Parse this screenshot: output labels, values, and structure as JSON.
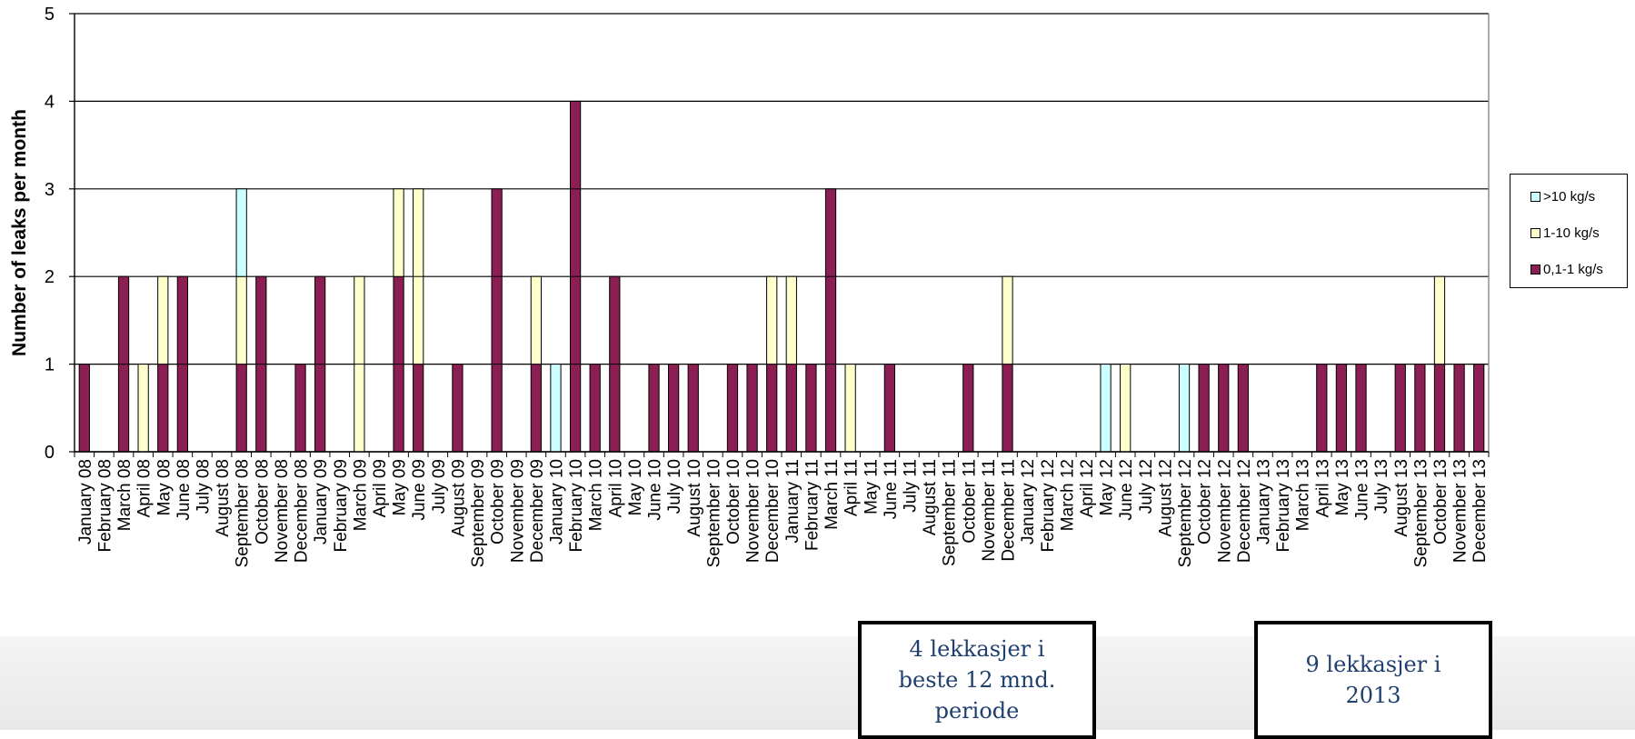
{
  "chart_data": {
    "type": "bar",
    "stacked": true,
    "ylabel": "Number of leaks per month",
    "xlabel": "",
    "title": "",
    "ylim": [
      0,
      5
    ],
    "yticks": [
      0,
      1,
      2,
      3,
      4,
      5
    ],
    "grid": true,
    "legend_position": "right",
    "categories": [
      "January 08",
      "February 08",
      "March 08",
      "April 08",
      "May 08",
      "June 08",
      "July 08",
      "August 08",
      "September 08",
      "October 08",
      "November 08",
      "December 08",
      "January 09",
      "February 09",
      "March 09",
      "April 09",
      "May 09",
      "June 09",
      "July 09",
      "August 09",
      "September 09",
      "October 09",
      "November 09",
      "December 09",
      "January 10",
      "February 10",
      "March 10",
      "April 10",
      "May 10",
      "June 10",
      "July 10",
      "August 10",
      "September 10",
      "October 10",
      "November 10",
      "December 10",
      "January 11",
      "February 11",
      "March 11",
      "April 11",
      "May 11",
      "June 11",
      "July 11",
      "August 11",
      "September 11",
      "October 11",
      "November 11",
      "December 11",
      "January 12",
      "February 12",
      "March 12",
      "April 12",
      "May 12",
      "June 12",
      "July 12",
      "August 12",
      "September 12",
      "October 12",
      "November 12",
      "December 12",
      "January 13",
      "February 13",
      "March 13",
      "April 13",
      "May 13",
      "June 13",
      "July 13",
      "August 13",
      "September 13",
      "October 13",
      "November 13",
      "December 13"
    ],
    "series": [
      {
        "name": "0,1-1 kg/s",
        "color": "#8b1e52",
        "values": [
          1,
          0,
          2,
          0,
          1,
          2,
          0,
          0,
          1,
          2,
          0,
          1,
          2,
          0,
          0,
          0,
          2,
          1,
          0,
          1,
          0,
          3,
          0,
          1,
          0,
          4,
          1,
          2,
          0,
          1,
          1,
          1,
          0,
          1,
          1,
          1,
          1,
          1,
          3,
          0,
          0,
          1,
          0,
          0,
          0,
          1,
          0,
          1,
          0,
          0,
          0,
          0,
          0,
          0,
          0,
          0,
          0,
          1,
          1,
          1,
          0,
          0,
          0,
          1,
          1,
          1,
          0,
          1,
          1,
          1,
          1,
          1
        ]
      },
      {
        "name": "1-10 kg/s",
        "color": "#ffffcc",
        "values": [
          0,
          0,
          0,
          1,
          1,
          0,
          0,
          0,
          1,
          0,
          0,
          0,
          0,
          0,
          2,
          0,
          1,
          2,
          0,
          0,
          0,
          0,
          0,
          1,
          0,
          0,
          0,
          0,
          0,
          0,
          0,
          0,
          0,
          0,
          0,
          1,
          1,
          0,
          0,
          1,
          0,
          0,
          0,
          0,
          0,
          0,
          0,
          1,
          0,
          0,
          0,
          0,
          0,
          1,
          0,
          0,
          0,
          0,
          0,
          0,
          0,
          0,
          0,
          0,
          0,
          0,
          0,
          0,
          0,
          1,
          0,
          0
        ]
      },
      {
        "name": ">10 kg/s",
        "color": "#ccffff",
        "values": [
          0,
          0,
          0,
          0,
          0,
          0,
          0,
          0,
          1,
          0,
          0,
          0,
          0,
          0,
          0,
          0,
          0,
          0,
          0,
          0,
          0,
          0,
          0,
          0,
          1,
          0,
          0,
          0,
          0,
          0,
          0,
          0,
          0,
          0,
          0,
          0,
          0,
          0,
          0,
          0,
          0,
          0,
          0,
          0,
          0,
          0,
          0,
          0,
          0,
          0,
          0,
          0,
          1,
          0,
          0,
          0,
          1,
          0,
          0,
          0,
          0,
          0,
          0,
          0,
          0,
          0,
          0,
          0,
          0,
          0,
          0,
          0
        ]
      }
    ],
    "legend": [
      ">10 kg/s",
      "1-10 kg/s",
      "0,1-1 kg/s"
    ]
  },
  "callouts": [
    {
      "text": "4 lekkasjer i beste 12 mnd. periode"
    },
    {
      "text": "9 lekkasjer i 2013"
    }
  ]
}
